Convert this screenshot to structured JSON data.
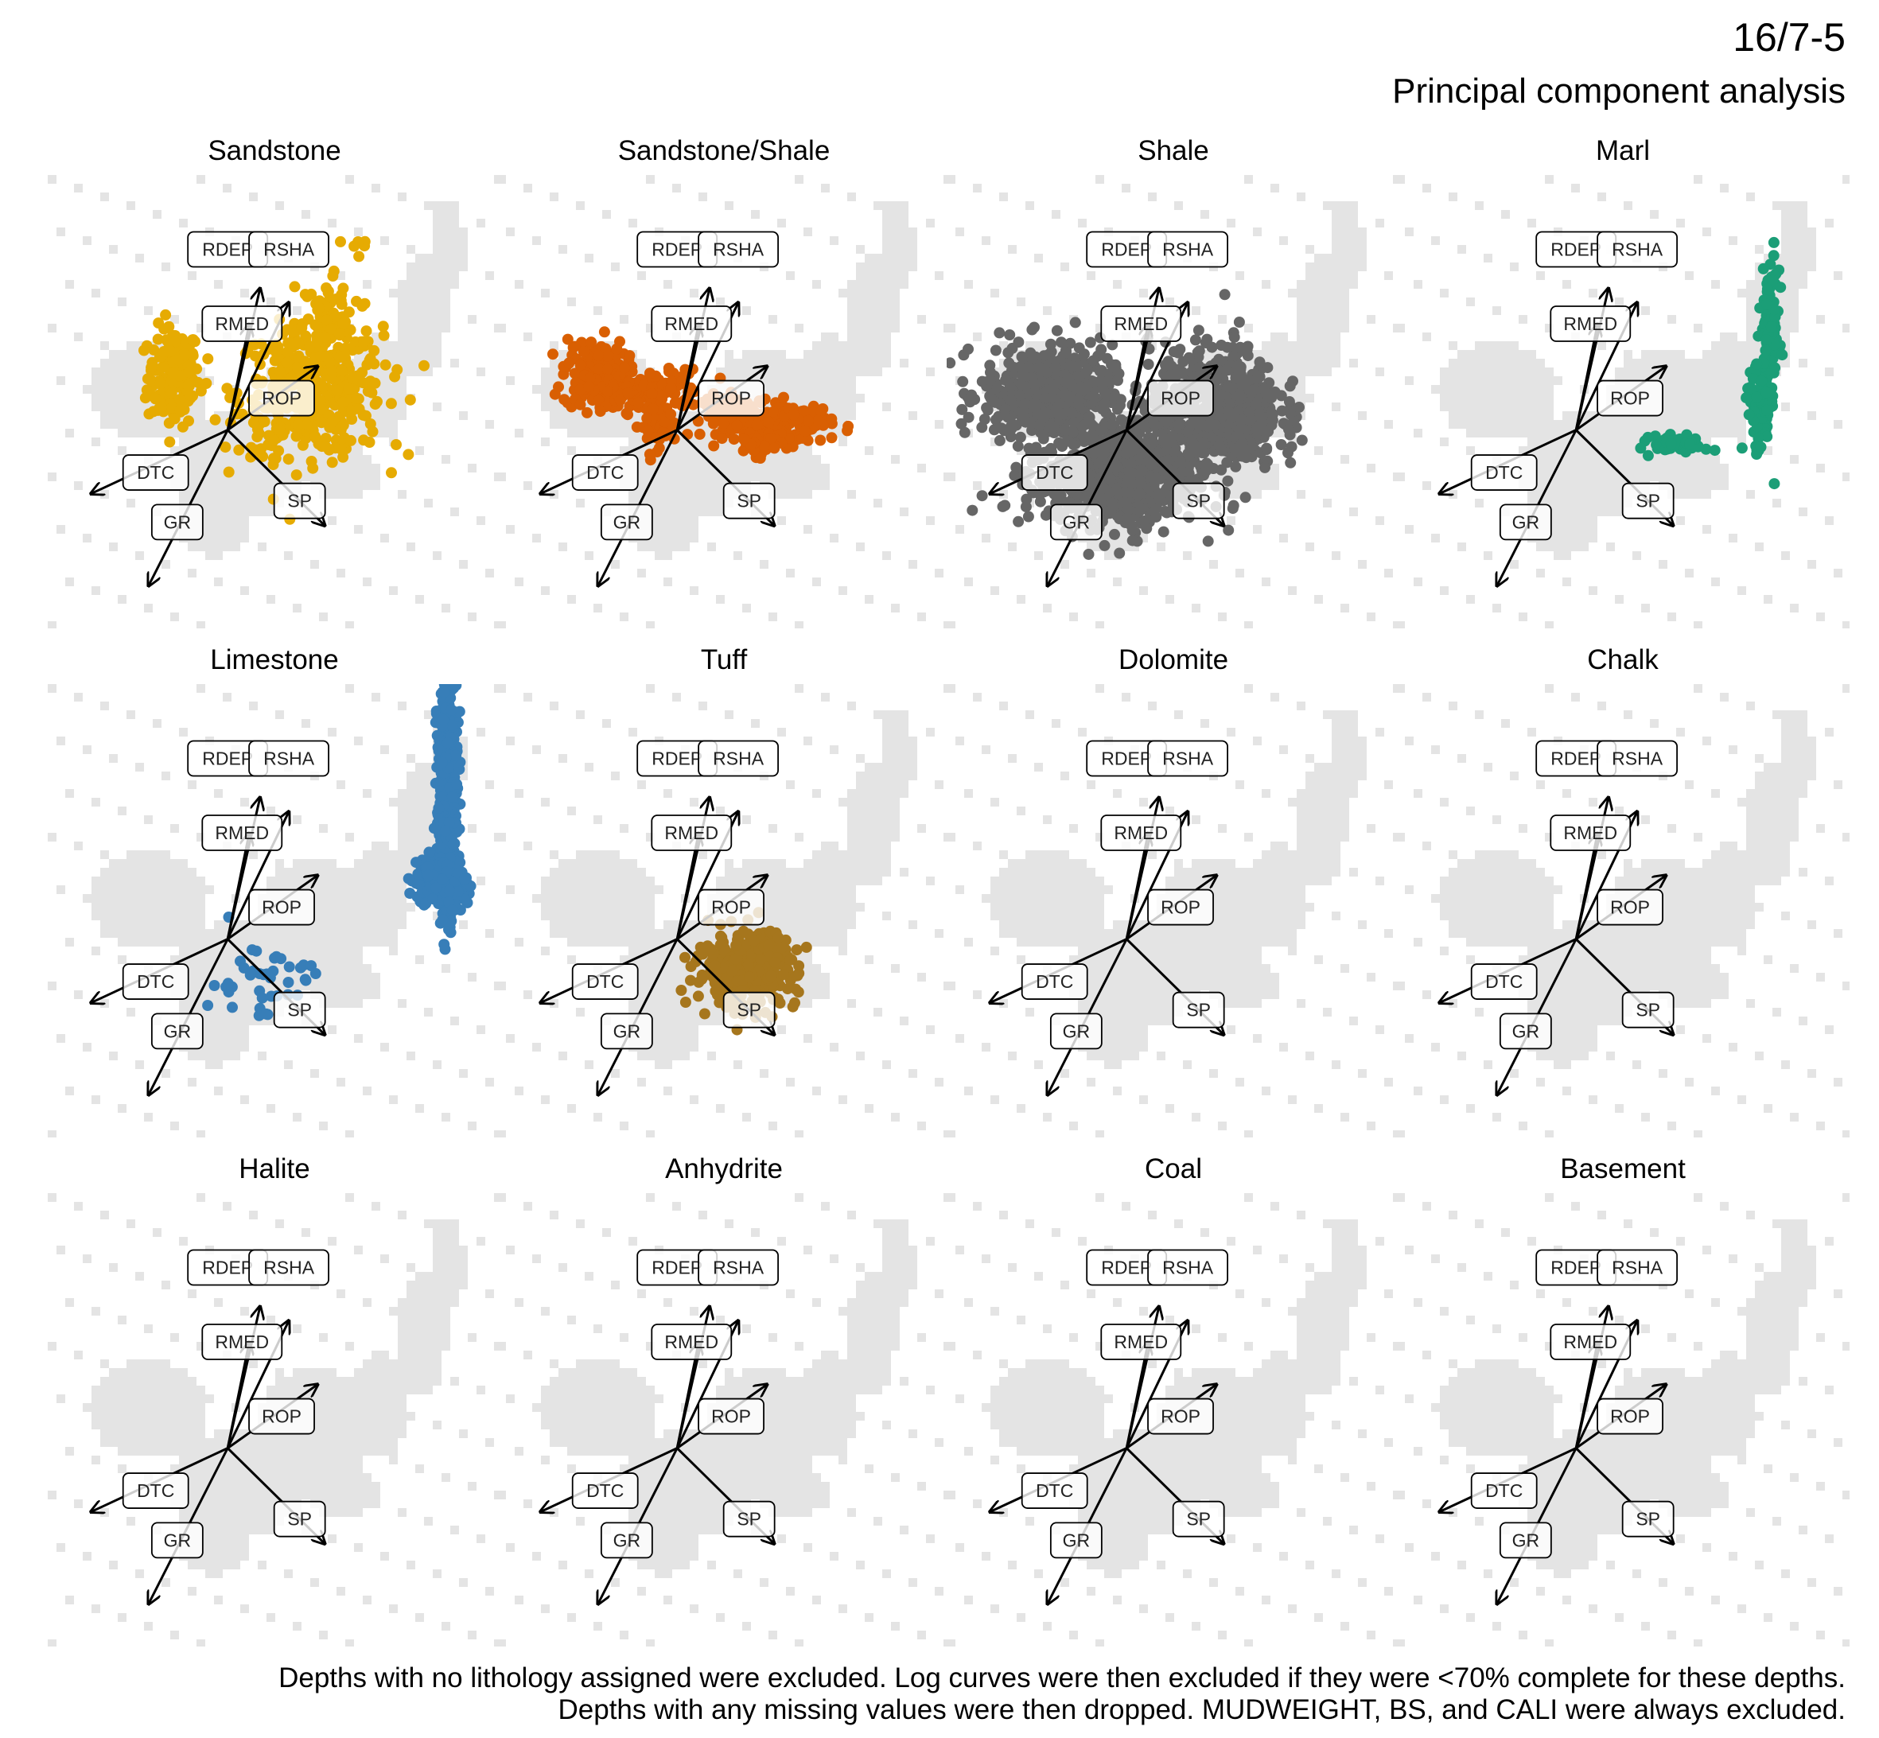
{
  "title": "16/7-5",
  "subtitle": "Principal component analysis",
  "caption": {
    "line1": "Depths with no lithology assigned were excluded. Log curves were then excluded if they were <70% complete for these depths.",
    "line2": "Depths with any missing values were then dropped. MUDWEIGHT, BS, and CALI were always excluded."
  },
  "colors": {
    "background_cloud": "#e4e4e4",
    "arrow": "#000000",
    "label_border": "#000000",
    "label_fill": "#ffffff"
  },
  "chart_data": {
    "type": "scatter",
    "description_kind": "pca_biplot_facets",
    "xlim": [
      -2.5,
      3.8
    ],
    "ylim": [
      -2.8,
      3.6
    ],
    "grid": false,
    "legend": "none",
    "loadings": [
      {
        "name": "RDEP",
        "x": 0.45,
        "y": 2.0
      },
      {
        "name": "RSHA",
        "x": 0.85,
        "y": 1.8
      },
      {
        "name": "RMED",
        "x": 0.3,
        "y": 1.5
      },
      {
        "name": "ROP",
        "x": 1.25,
        "y": 0.9
      },
      {
        "name": "DTC",
        "x": -1.9,
        "y": -0.9
      },
      {
        "name": "GR",
        "x": -1.1,
        "y": -2.2
      },
      {
        "name": "SP",
        "x": 1.35,
        "y": -1.35
      }
    ],
    "label_positions": [
      {
        "name": "RDEP",
        "x": 0.0,
        "y": 2.55
      },
      {
        "name": "RSHA",
        "x": 0.85,
        "y": 2.55
      },
      {
        "name": "RMED",
        "x": 0.2,
        "y": 1.5
      },
      {
        "name": "ROP",
        "x": 0.75,
        "y": 0.45
      },
      {
        "name": "DTC",
        "x": -1.0,
        "y": -0.6
      },
      {
        "name": "GR",
        "x": -0.7,
        "y": -1.3
      },
      {
        "name": "SP",
        "x": 1.0,
        "y": -1.0
      }
    ],
    "facets": [
      {
        "name": "Sandstone",
        "color": "#E6AB02",
        "clusters": [
          {
            "cx": -0.75,
            "cy": 0.75,
            "sx": 0.18,
            "sy": 0.35,
            "n": 170
          },
          {
            "cx": 1.15,
            "cy": 0.55,
            "sx": 0.5,
            "sy": 0.45,
            "n": 420
          },
          {
            "cx": 1.5,
            "cy": 1.4,
            "sx": 0.25,
            "sy": 0.45,
            "n": 90
          },
          {
            "cx": 1.8,
            "cy": 2.6,
            "sx": 0.08,
            "sy": 0.25,
            "n": 6
          },
          {
            "cx": 0.4,
            "cy": -0.15,
            "sx": 0.2,
            "sy": 0.15,
            "n": 10
          }
        ]
      },
      {
        "name": "Sandstone/Shale",
        "color": "#D95F02",
        "clusters": [
          {
            "cx": -1.15,
            "cy": 0.8,
            "sx": 0.22,
            "sy": 0.25,
            "n": 140
          },
          {
            "cx": -0.45,
            "cy": 0.55,
            "sx": 0.4,
            "sy": 0.15,
            "n": 150
          },
          {
            "cx": -0.3,
            "cy": 0.05,
            "sx": 0.15,
            "sy": 0.15,
            "n": 40
          },
          {
            "cx": 0.85,
            "cy": 0.2,
            "sx": 0.25,
            "sy": 0.15,
            "n": 80
          },
          {
            "cx": 1.55,
            "cy": 0.1,
            "sx": 0.3,
            "sy": 0.15,
            "n": 110
          },
          {
            "cx": 1.1,
            "cy": -0.15,
            "sx": 0.15,
            "sy": 0.1,
            "n": 40
          }
        ]
      },
      {
        "name": "Shale",
        "color": "#666666",
        "clusters": [
          {
            "cx": -1.1,
            "cy": 0.5,
            "sx": 0.45,
            "sy": 0.35,
            "n": 500
          },
          {
            "cx": 0.0,
            "cy": -0.55,
            "sx": 0.5,
            "sy": 0.4,
            "n": 500
          },
          {
            "cx": 1.2,
            "cy": 0.3,
            "sx": 0.45,
            "sy": 0.45,
            "n": 550
          },
          {
            "cx": -0.5,
            "cy": -0.85,
            "sx": 0.6,
            "sy": 0.25,
            "n": 200
          },
          {
            "cx": 1.8,
            "cy": 0.2,
            "sx": 0.2,
            "sy": 0.2,
            "n": 60
          }
        ]
      },
      {
        "name": "Marl",
        "color": "#1B9E77",
        "clusters": [
          {
            "cx": 2.7,
            "cy": 1.4,
            "sx": 0.06,
            "sy": 0.45,
            "n": 120
          },
          {
            "cx": 2.55,
            "cy": 0.3,
            "sx": 0.08,
            "sy": 0.35,
            "n": 100
          },
          {
            "cx": 1.45,
            "cy": -0.2,
            "sx": 0.2,
            "sy": 0.06,
            "n": 60
          }
        ]
      },
      {
        "name": "Limestone",
        "color": "#377EB8",
        "clusters": [
          {
            "cx": 3.05,
            "cy": 2.1,
            "sx": 0.07,
            "sy": 0.8,
            "n": 450
          },
          {
            "cx": 2.95,
            "cy": 0.8,
            "sx": 0.18,
            "sy": 0.18,
            "n": 200
          },
          {
            "cx": 0.45,
            "cy": -0.6,
            "sx": 0.35,
            "sy": 0.3,
            "n": 40
          }
        ]
      },
      {
        "name": "Tuff",
        "color": "#A6761D",
        "clusters": [
          {
            "cx": 0.95,
            "cy": -0.45,
            "sx": 0.35,
            "sy": 0.25,
            "n": 350
          },
          {
            "cx": 1.3,
            "cy": -0.05,
            "sx": 0.15,
            "sy": 0.15,
            "n": 30
          }
        ]
      },
      {
        "name": "Dolomite",
        "color": "#7570B3",
        "clusters": []
      },
      {
        "name": "Chalk",
        "color": "#66A61E",
        "clusters": []
      },
      {
        "name": "Halite",
        "color": "#E7298A",
        "clusters": []
      },
      {
        "name": "Anhydrite",
        "color": "#E41A1C",
        "clusters": []
      },
      {
        "name": "Coal",
        "color": "#000000",
        "clusters": []
      },
      {
        "name": "Basement",
        "color": "#999999",
        "clusters": []
      }
    ]
  }
}
